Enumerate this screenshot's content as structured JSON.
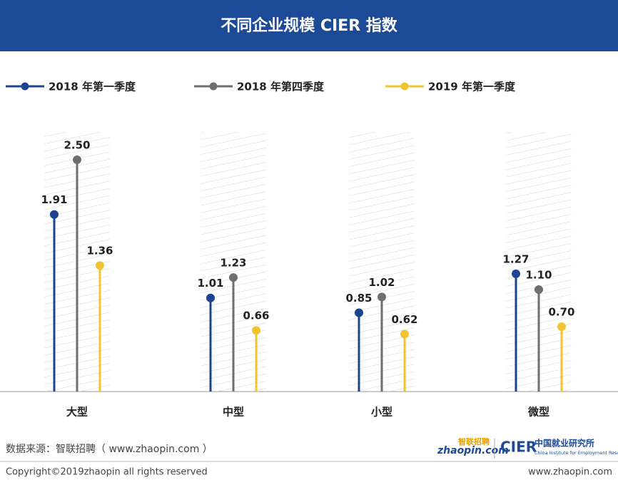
{
  "chart_data": {
    "type": "lollipop",
    "title": "不同企业规模 CIER 指数",
    "categories": [
      "大型",
      "中型",
      "小型",
      "微型"
    ],
    "series": [
      {
        "name": "2018  年第一季度",
        "color": "#1b4592",
        "values": [
          1.91,
          1.01,
          0.85,
          1.27
        ],
        "value_labels": [
          "1.91",
          "1.01",
          "0.85",
          "1.27"
        ]
      },
      {
        "name": "2018  年第四季度",
        "color": "#6e6e6e",
        "values": [
          2.5,
          1.23,
          1.02,
          1.1
        ],
        "value_labels": [
          "2.50",
          "1.23",
          "1.02",
          "1.10"
        ]
      },
      {
        "name": "2019 年第一季度",
        "color": "#f0c330",
        "values": [
          1.36,
          0.66,
          0.62,
          0.7
        ],
        "value_labels": [
          "1.36",
          "0.66",
          "0.62",
          "0.70"
        ]
      }
    ],
    "ylim": [
      0,
      2.8
    ],
    "legend": "top"
  },
  "footer": {
    "source": "数据来源：智联招聘（ www.zhaopin.com ）",
    "logo1_en": "zhaopin.com",
    "logo1_cn": "智联招聘",
    "logo2_abbr": "CIER",
    "logo2_cn": "中国就业研究所",
    "logo2_en": "China Institute for Employment Research",
    "copyright": "Copyright©2019zhaopin all rights reserved",
    "site": "www.zhaopin.com"
  }
}
